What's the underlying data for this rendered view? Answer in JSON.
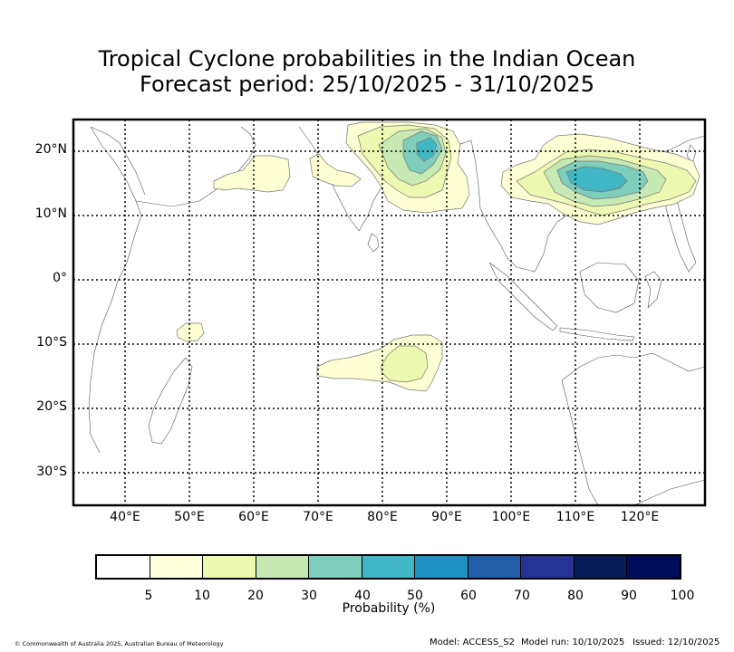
{
  "title": {
    "line1": "Tropical Cyclone probabilities in the Indian Ocean",
    "line2": "Forecast period: 25/10/2025 - 31/10/2025"
  },
  "map": {
    "lat_labels": [
      "20°N",
      "10°N",
      "0°",
      "10°S",
      "20°S",
      "30°S"
    ],
    "lon_labels": [
      "40°E",
      "50°E",
      "60°E",
      "70°E",
      "80°E",
      "90°E",
      "100°E",
      "110°E",
      "120°E"
    ],
    "probability_regions": [
      {
        "name": "arabian-sea-region",
        "level": "5-10",
        "color": "#ffffd4"
      },
      {
        "name": "bay-of-bengal-region",
        "level": "30-40",
        "color": "#7fcdbb"
      },
      {
        "name": "south-china-sea-region",
        "level": "40-50",
        "color": "#41b6c4"
      },
      {
        "name": "south-indian-ocean-region",
        "level": "10-20",
        "color": "#edf8b1"
      },
      {
        "name": "madagascar-east-region",
        "level": "5-10",
        "color": "#ffffd4"
      }
    ]
  },
  "colorbar": {
    "colors": [
      "#ffffff",
      "#ffffd9",
      "#edf8b1",
      "#c7e9b4",
      "#7fcdbb",
      "#41b6c4",
      "#1d91c0",
      "#225ea8",
      "#253494",
      "#081d58",
      "#000d5a"
    ],
    "ticks": [
      "5",
      "10",
      "20",
      "30",
      "40",
      "50",
      "60",
      "70",
      "80",
      "90",
      "100"
    ],
    "label": "Probability (%)"
  },
  "footer": {
    "copyright": "© Commonwealth of Australia 2025, Australian Bureau of Meteorology",
    "model": "Model: ACCESS_S2",
    "model_run": "Model run: 10/10/2025",
    "issued": "Issued: 12/10/2025"
  }
}
